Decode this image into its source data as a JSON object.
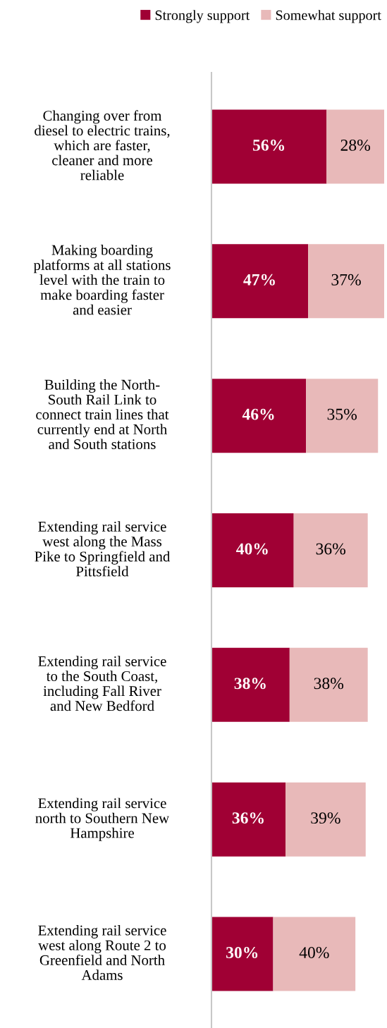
{
  "chart_data": {
    "type": "bar",
    "orientation": "horizontal",
    "stacked": true,
    "legend": "top",
    "grid": false,
    "tick_labels": "y",
    "categories": [
      "Changing over from\ndiesel to electric trains,\nwhich are faster,\ncleaner and more\nreliable",
      "Making boarding\nplatforms at all stations\nlevel with the train to\nmake boarding faster\nand easier",
      "Building the North-\nSouth Rail Link to\nconnect train lines that\ncurrently end at North\nand South stations",
      "Extending rail service\nwest along the Mass\nPike to Springfield and\nPittsfield",
      "Extending rail service\nto the South Coast,\nincluding Fall River\nand New Bedford",
      "Extending rail service\nnorth to Southern New\nHampshire",
      "Extending rail service\nwest along Route 2 to\nGreenfield and North\nAdams"
    ],
    "series": [
      {
        "name": "Strongly support",
        "color": "#a00034",
        "values": [
          56,
          47,
          46,
          40,
          38,
          36,
          30
        ],
        "value_labels": [
          "56%",
          "47%",
          "46%",
          "40%",
          "38%",
          "36%",
          "30%"
        ]
      },
      {
        "name": "Somewhat support",
        "color": "#e8b9b9",
        "values": [
          28,
          37,
          35,
          36,
          38,
          39,
          40
        ],
        "value_labels": [
          "28%",
          "37%",
          "35%",
          "36%",
          "38%",
          "39%",
          "40%"
        ]
      }
    ]
  }
}
